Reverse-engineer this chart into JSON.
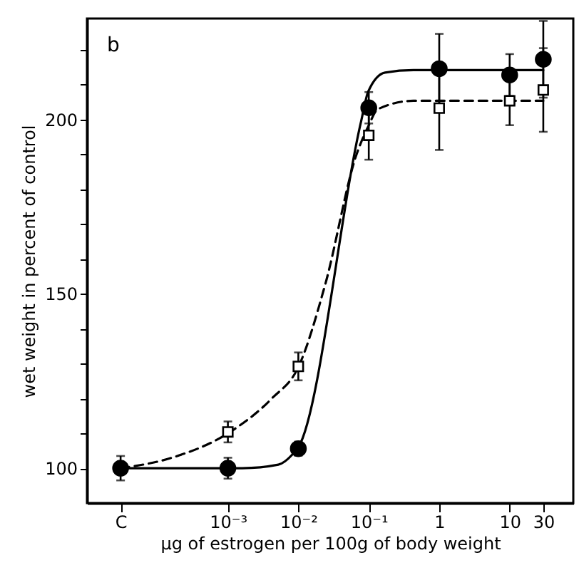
{
  "chart_data": {
    "type": "scatter",
    "xlabel": "µg of estrogen per 100g of body weight",
    "ylabel": "wet weight in percent of control",
    "annotations": [
      "b"
    ],
    "log": "x",
    "xlim": [
      1e-05,
      80
    ],
    "xticks": [
      {
        "value": 3e-05,
        "label": "C"
      },
      {
        "value": 0.001,
        "label": "10⁻³"
      },
      {
        "value": 0.01,
        "label": "10⁻²"
      },
      {
        "value": 0.1,
        "label": "10⁻¹"
      },
      1,
      10,
      30
    ],
    "ylim": [
      90,
      229
    ],
    "yticks": [
      100,
      {
        "value": 110,
        "label": null
      },
      {
        "value": 120,
        "label": null
      },
      {
        "value": 130,
        "label": null
      },
      {
        "value": 140,
        "label": null
      },
      150,
      {
        "value": 160,
        "label": null
      },
      {
        "value": 170,
        "label": null
      },
      {
        "value": 180,
        "label": null
      },
      {
        "value": 190,
        "label": null
      },
      200,
      {
        "value": 210,
        "label": null
      },
      {
        "value": 220,
        "label": null
      }
    ],
    "grid": false,
    "series": [
      {
        "marker": "circle",
        "color": "#000000",
        "x": [
          3e-05,
          0.001,
          0.01,
          0.1,
          1,
          10,
          30
        ],
        "values": [
          100,
          100,
          105.6,
          203.4,
          214.6,
          212.8,
          217.3
        ],
        "errors": [
          3.5,
          3,
          2,
          4.5,
          10,
          6,
          11
        ]
      },
      {
        "marker": "square",
        "color": "#000000",
        "x": [
          0.001,
          0.01,
          0.1,
          1,
          10,
          30
        ],
        "values": [
          110.4,
          129.2,
          195.5,
          203.3,
          205.4,
          208.5
        ],
        "errors": [
          3,
          4,
          7,
          12,
          7,
          12
        ]
      },
      {
        "type": "line",
        "line_style": "solid",
        "color": "#000000",
        "x": [
          3e-05,
          0.0016,
          0.0052,
          0.0083,
          0.01,
          0.078,
          0.098,
          0.17,
          0.43,
          30
        ],
        "values": [
          100,
          100,
          101,
          104,
          106,
          199.6,
          208,
          213.5,
          214.2,
          214.2
        ]
      },
      {
        "type": "line",
        "line_style": "dashed",
        "color": "#000000",
        "x": [
          3e-05,
          0.00016,
          0.001,
          0.0042,
          0.01,
          0.024,
          0.067,
          0.098,
          0.135,
          0.43,
          30
        ],
        "values": [
          100,
          103,
          110,
          120,
          129,
          152.6,
          190,
          198,
          203,
          205.4,
          205.4
        ]
      }
    ]
  }
}
